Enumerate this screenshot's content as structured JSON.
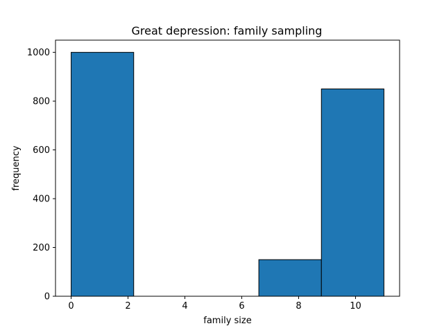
{
  "chart_data": {
    "type": "bar",
    "title": "Great depression: family sampling",
    "xlabel": "family size",
    "ylabel": "frequency",
    "bins": [
      {
        "x0": 0,
        "x1": 2.2,
        "value": 1000
      },
      {
        "x0": 2.2,
        "x1": 4.4,
        "value": 0
      },
      {
        "x0": 4.4,
        "x1": 6.6,
        "value": 0
      },
      {
        "x0": 6.6,
        "x1": 8.8,
        "value": 150
      },
      {
        "x0": 8.8,
        "x1": 11,
        "value": 850
      }
    ],
    "xlim": [
      -0.55,
      11.55
    ],
    "ylim": [
      0,
      1050
    ],
    "xticks": [
      0,
      2,
      4,
      6,
      8,
      10
    ],
    "yticks": [
      0,
      200,
      400,
      600,
      800,
      1000
    ],
    "bar_color": "#1f77b4",
    "edge_color": "#000000",
    "grid": false,
    "legend": "none"
  }
}
